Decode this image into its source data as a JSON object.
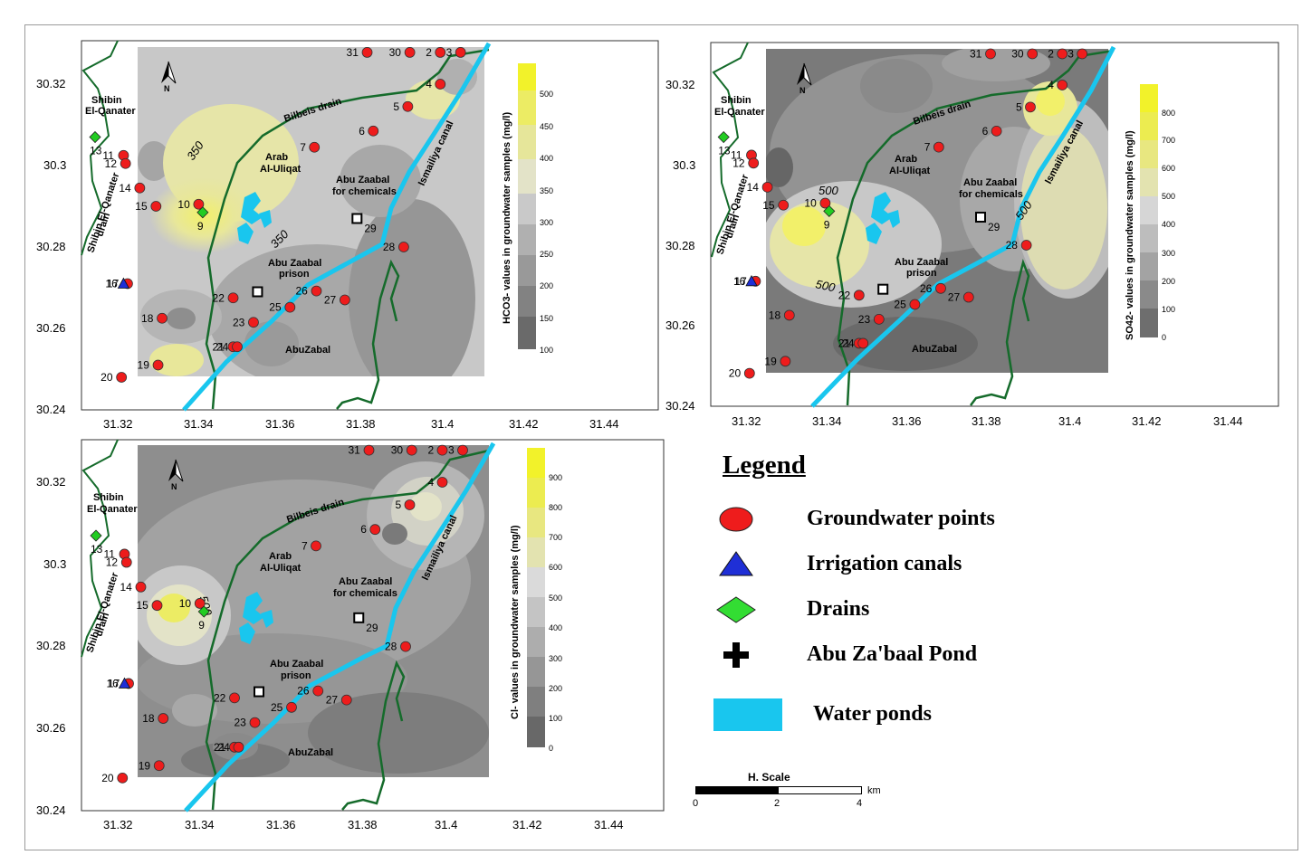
{
  "maps": [
    {
      "id": "hco3",
      "colorbar_title": "HCO3- values in groundwater samples (mg/l)",
      "colorbar_ticks": [
        "500",
        "450",
        "400",
        "350",
        "300",
        "250",
        "200",
        "150",
        "100"
      ],
      "yticks": [
        "30.32",
        "30.3",
        "30.28",
        "30.26",
        "30.24"
      ],
      "xticks": [
        "31.32",
        "31.34",
        "31.36",
        "31.38",
        "31.4",
        "31.42",
        "31.44"
      ],
      "contour_labels": [
        "350",
        "350"
      ]
    },
    {
      "id": "so4",
      "colorbar_title": "SO42- values in groundwater samples (mg/l)",
      "colorbar_ticks": [
        "800",
        "700",
        "600",
        "500",
        "400",
        "300",
        "200",
        "100",
        "0"
      ],
      "yticks": [
        "30.32",
        "30.3",
        "30.28",
        "30.26",
        "30.24"
      ],
      "xticks": [
        "31.32",
        "31.34",
        "31.36",
        "31.38",
        "31.4",
        "31.42",
        "31.44"
      ],
      "contour_labels": [
        "500",
        "500",
        "500"
      ]
    },
    {
      "id": "cl",
      "colorbar_title": "Cl- values in groundwater samples (mg/l)",
      "colorbar_ticks": [
        "900",
        "800",
        "700",
        "600",
        "500",
        "400",
        "300",
        "200",
        "100",
        "0"
      ],
      "yticks": [
        "30.32",
        "30.3",
        "30.28",
        "30.26",
        "30.24"
      ],
      "xticks": [
        "31.32",
        "31.34",
        "31.36",
        "31.38",
        "31.4",
        "31.42",
        "31.44"
      ],
      "contour_labels": [
        "500"
      ]
    }
  ],
  "place_labels": {
    "shibin1": "Shibin",
    "shibin2": "El-Qanater",
    "drain_label1": "Shibin El-Qanater",
    "drain_label2": "drain",
    "bilbeis": "Bilbeis drain",
    "arab1": "Arab",
    "arab2": "Al-Uliqat",
    "chem1": "Abu Zaabal",
    "chem2": "for chemicals",
    "prison1": "Abu Zaabal",
    "prison2": "prison",
    "abuzabal": "AbuZabal",
    "ismailiya": "Ismailiya canal"
  },
  "north_label": "N",
  "points": [
    {
      "n": "2",
      "x": 31.403,
      "y": 30.3278
    },
    {
      "n": "3",
      "x": 31.408,
      "y": 30.3278
    },
    {
      "n": "4",
      "x": 31.403,
      "y": 30.32
    },
    {
      "n": "5",
      "x": 31.395,
      "y": 30.3145
    },
    {
      "n": "6",
      "x": 31.3865,
      "y": 30.3085
    },
    {
      "n": "7",
      "x": 31.372,
      "y": 30.3045
    },
    {
      "n": "10",
      "x": 31.3435,
      "y": 30.2905
    },
    {
      "n": "11",
      "x": 31.325,
      "y": 30.3025
    },
    {
      "n": "12",
      "x": 31.3255,
      "y": 30.3005
    },
    {
      "n": "14",
      "x": 31.329,
      "y": 30.2945
    },
    {
      "n": "15",
      "x": 31.333,
      "y": 30.29
    },
    {
      "n": "17",
      "x": 31.326,
      "y": 30.271
    },
    {
      "n": "18",
      "x": 31.3345,
      "y": 30.2625
    },
    {
      "n": "19",
      "x": 31.3335,
      "y": 30.251
    },
    {
      "n": "20",
      "x": 31.3245,
      "y": 30.248
    },
    {
      "n": "21",
      "x": 31.352,
      "y": 30.2555
    },
    {
      "n": "22",
      "x": 31.352,
      "y": 30.2675
    },
    {
      "n": "23",
      "x": 31.357,
      "y": 30.2615
    },
    {
      "n": "24",
      "x": 31.353,
      "y": 30.2555
    },
    {
      "n": "25",
      "x": 31.366,
      "y": 30.2652
    },
    {
      "n": "26",
      "x": 31.3725,
      "y": 30.2692
    },
    {
      "n": "27",
      "x": 31.3795,
      "y": 30.267
    },
    {
      "n": "28",
      "x": 31.394,
      "y": 30.28
    },
    {
      "n": "30",
      "x": 31.3955,
      "y": 30.3278
    },
    {
      "n": "31",
      "x": 31.385,
      "y": 30.3278
    }
  ],
  "irrigation_point": {
    "n": "16",
    "x": 31.325,
    "y": 30.271
  },
  "drain_points": [
    {
      "n": "13",
      "x": 31.318,
      "y": 30.307
    },
    {
      "n": "9",
      "x": 31.3445,
      "y": 30.2885
    }
  ],
  "pond_points": [
    {
      "n": "29",
      "x": 31.3825,
      "y": 30.287
    },
    {
      "n": "",
      "x": 31.358,
      "y": 30.269
    }
  ],
  "legend": {
    "title": "Legend",
    "items": [
      {
        "label": "Groundwater points",
        "icon": "red-circle"
      },
      {
        "label": "Irrigation canals",
        "icon": "blue-triangle"
      },
      {
        "label": "Drains",
        "icon": "green-diamond"
      },
      {
        "label": "Abu Za'baal Pond",
        "icon": "black-cross"
      },
      {
        "label": "Water ponds",
        "icon": "cyan-bar"
      }
    ]
  },
  "scale": {
    "title": "H. Scale",
    "labels": [
      "0",
      "2",
      "4"
    ],
    "unit": "km"
  },
  "colors": {
    "point": "#ee1c1c",
    "canal": "#19c6ee",
    "drain": "#156b2b",
    "irrigation": "#1f2fd6",
    "drain_marker": "#22cc22"
  }
}
